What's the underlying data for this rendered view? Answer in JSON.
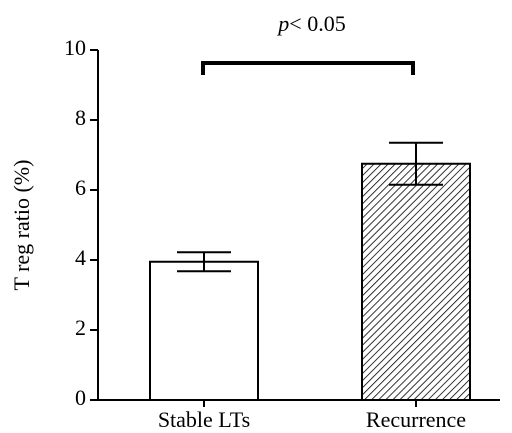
{
  "chart_data": {
    "type": "bar",
    "ylabel": "T reg ratio (%)",
    "annotation": [
      "p",
      "< 0.05"
    ],
    "categories": [
      "Stable LTs",
      "Recurrence"
    ],
    "values": [
      3.95,
      6.75
    ],
    "errors": [
      0.27,
      0.6
    ],
    "hatch": [
      false,
      true
    ],
    "color": "#000000",
    "ylim": [
      0,
      10
    ],
    "yticks": [
      0,
      2,
      4,
      6,
      8,
      10
    ]
  }
}
